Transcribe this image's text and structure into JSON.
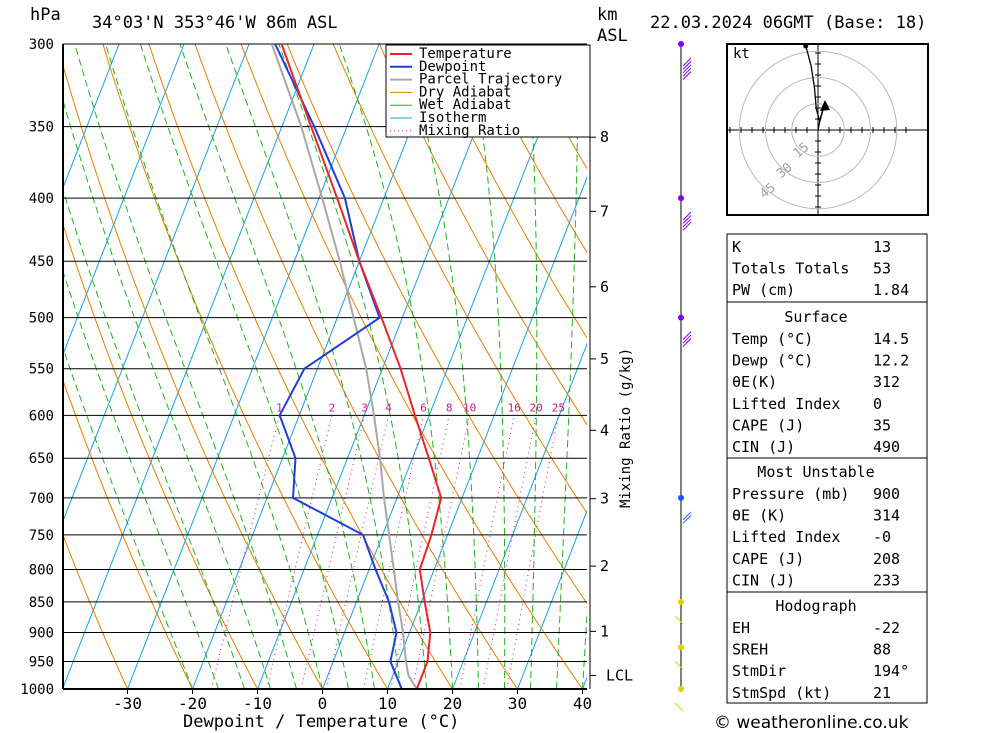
{
  "header": {
    "pressure_unit": "hPa",
    "location": "34°03'N  353°46'W  86m  ASL",
    "height_unit": "km",
    "height_unit2": "ASL",
    "datetime": "22.03.2024  06GMT  (Base: 18)"
  },
  "footer": {
    "copyright": "© weatheronline.co.uk",
    "xlabel": "Dewpoint / Temperature (°C)"
  },
  "colors": {
    "temperature": "#e8262a",
    "dewpoint": "#1f3fd6",
    "parcel": "#a8a8a8",
    "dry_adiabat": "#e08000",
    "wet_adiabat": "#22b022",
    "isotherm": "#1aa0e0",
    "mixing_ratio": "#d0148c"
  },
  "chart_data": {
    "type": "line",
    "title": "34°03'N  353°46'W  86m  ASL",
    "xlabel": "Dewpoint / Temperature (°C)",
    "ylabel": "hPa",
    "xlim": [
      -40,
      40
    ],
    "ylim": [
      1000,
      300
    ],
    "x_ticks": [
      -30,
      -20,
      -10,
      0,
      10,
      20,
      30,
      40
    ],
    "pressure_levels": [
      300,
      350,
      400,
      450,
      500,
      550,
      600,
      650,
      700,
      750,
      800,
      850,
      900,
      950,
      1000
    ],
    "height_label": "km ASL",
    "height_ticks": [
      {
        "label": "8",
        "p": 357
      },
      {
        "label": "7",
        "p": 410
      },
      {
        "label": "6",
        "p": 472
      },
      {
        "label": "5",
        "p": 540
      },
      {
        "label": "4",
        "p": 617
      },
      {
        "label": "3",
        "p": 701
      },
      {
        "label": "2",
        "p": 795
      },
      {
        "label": "1",
        "p": 898
      },
      {
        "label": "LCL",
        "p": 975
      }
    ],
    "mixing_ratio_label": "Mixing Ratio (g/kg)",
    "mixing_ratio_values": [
      1,
      2,
      3,
      4,
      6,
      8,
      10,
      16,
      20,
      25
    ],
    "legend": [
      "Temperature",
      "Dewpoint",
      "Parcel Trajectory",
      "Dry Adiabat",
      "Wet Adiabat",
      "Isotherm",
      "Mixing Ratio"
    ],
    "series": [
      {
        "name": "Temperature",
        "points": [
          {
            "p": 1000,
            "t": 14.5
          },
          {
            "p": 950,
            "t": 14.5
          },
          {
            "p": 900,
            "t": 13.2
          },
          {
            "p": 850,
            "t": 10.5
          },
          {
            "p": 800,
            "t": 7.8
          },
          {
            "p": 750,
            "t": 7.5
          },
          {
            "p": 700,
            "t": 6.8
          },
          {
            "p": 650,
            "t": 2.5
          },
          {
            "p": 600,
            "t": -2.2
          },
          {
            "p": 550,
            "t": -7.2
          },
          {
            "p": 500,
            "t": -13.2
          },
          {
            "p": 450,
            "t": -20.0
          },
          {
            "p": 400,
            "t": -27.2
          },
          {
            "p": 350,
            "t": -35.5
          },
          {
            "p": 300,
            "t": -45.0
          }
        ]
      },
      {
        "name": "Dewpoint",
        "points": [
          {
            "p": 1000,
            "t": 12.2
          },
          {
            "p": 950,
            "t": 8.8
          },
          {
            "p": 900,
            "t": 8.0
          },
          {
            "p": 850,
            "t": 5.0
          },
          {
            "p": 800,
            "t": 1.0
          },
          {
            "p": 750,
            "t": -3.0
          },
          {
            "p": 700,
            "t": -16.0
          },
          {
            "p": 650,
            "t": -18.0
          },
          {
            "p": 600,
            "t": -23.0
          },
          {
            "p": 550,
            "t": -22.0
          },
          {
            "p": 500,
            "t": -13.5
          },
          {
            "p": 450,
            "t": -20.0
          },
          {
            "p": 400,
            "t": -26.0
          },
          {
            "p": 350,
            "t": -35.0
          },
          {
            "p": 300,
            "t": -46.0
          }
        ]
      },
      {
        "name": "Parcel Trajectory",
        "points": [
          {
            "p": 1000,
            "t": 14.5
          },
          {
            "p": 975,
            "t": 12.4
          },
          {
            "p": 950,
            "t": 11.2
          },
          {
            "p": 900,
            "t": 9.0
          },
          {
            "p": 850,
            "t": 6.4
          },
          {
            "p": 800,
            "t": 3.8
          },
          {
            "p": 750,
            "t": 1.0
          },
          {
            "p": 700,
            "t": -2.0
          },
          {
            "p": 650,
            "t": -5.0
          },
          {
            "p": 600,
            "t": -8.5
          },
          {
            "p": 550,
            "t": -12.5
          },
          {
            "p": 500,
            "t": -17.5
          },
          {
            "p": 450,
            "t": -23.0
          },
          {
            "p": 400,
            "t": -29.5
          },
          {
            "p": 350,
            "t": -37.0
          },
          {
            "p": 300,
            "t": -46.5
          }
        ]
      }
    ],
    "wind_barbs": [
      {
        "p": 300,
        "speed_kt": 45
      },
      {
        "p": 400,
        "speed_kt": 40
      },
      {
        "p": 500,
        "speed_kt": 30
      },
      {
        "p": 700,
        "speed_kt": 20
      },
      {
        "p": 850,
        "speed_kt": 10
      },
      {
        "p": 925,
        "speed_kt": 5
      },
      {
        "p": 1000,
        "speed_kt": 10
      }
    ],
    "hodograph": {
      "unit": "kt",
      "rings": [
        15,
        30,
        45
      ],
      "trace": [
        [
          0,
          0
        ],
        [
          1,
          5
        ],
        [
          -1,
          12
        ],
        [
          -2,
          24
        ],
        [
          -4,
          37
        ],
        [
          -7,
          48
        ]
      ],
      "storm_motion_arrow": [
        [
          1,
          5
        ],
        [
          4,
          16
        ]
      ]
    }
  },
  "indices": {
    "general": [
      {
        "label": "K",
        "value": "13"
      },
      {
        "label": "Totals Totals",
        "value": "53"
      },
      {
        "label": "PW (cm)",
        "value": "1.84"
      }
    ],
    "surface_title": "Surface",
    "surface": [
      {
        "label": "Temp (°C)",
        "value": "14.5"
      },
      {
        "label": "Dewp (°C)",
        "value": "12.2"
      },
      {
        "label": "θE(K)",
        "value": "312"
      },
      {
        "label": "Lifted Index",
        "value": "0"
      },
      {
        "label": "CAPE (J)",
        "value": "35"
      },
      {
        "label": "CIN (J)",
        "value": "490"
      }
    ],
    "unstable_title": "Most Unstable",
    "unstable": [
      {
        "label": "Pressure (mb)",
        "value": "900"
      },
      {
        "label": "θE (K)",
        "value": "314"
      },
      {
        "label": "Lifted Index",
        "value": "-0"
      },
      {
        "label": "CAPE (J)",
        "value": "208"
      },
      {
        "label": "CIN (J)",
        "value": "233"
      }
    ],
    "hodograph_title": "Hodograph",
    "hodograph": [
      {
        "label": "EH",
        "value": "-22"
      },
      {
        "label": "SREH",
        "value": "88"
      },
      {
        "label": "StmDir",
        "value": "194°"
      },
      {
        "label": "StmSpd (kt)",
        "value": "21"
      }
    ]
  }
}
